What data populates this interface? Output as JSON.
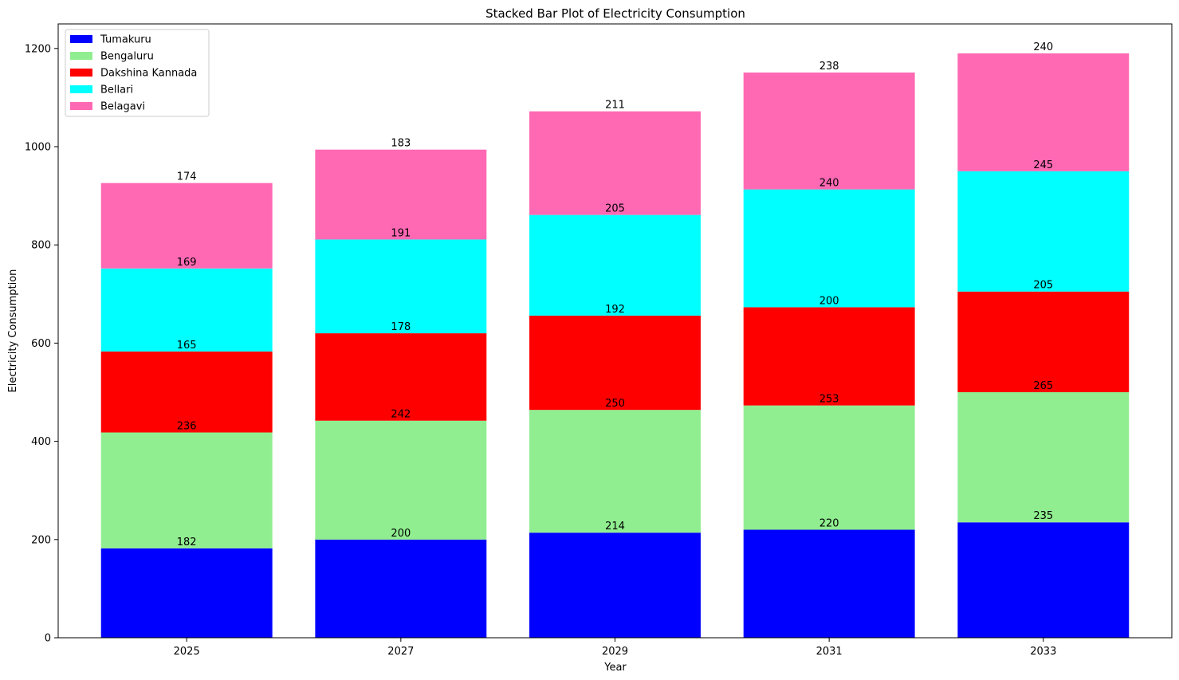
{
  "chart_data": {
    "type": "bar",
    "stacked": true,
    "title": "Stacked Bar Plot of Electricity Consumption",
    "xlabel": "Year",
    "ylabel": "Electricity Consumption",
    "categories": [
      "2025",
      "2027",
      "2029",
      "2031",
      "2033"
    ],
    "ylim": [
      0,
      1250
    ],
    "yticks": [
      0,
      200,
      400,
      600,
      800,
      1000,
      1200
    ],
    "grid": false,
    "legend_position": "top-left",
    "series": [
      {
        "name": "Tumakuru",
        "color": "#0000ff",
        "values": [
          182,
          200,
          214,
          220,
          235
        ]
      },
      {
        "name": "Bengaluru",
        "color": "#90ee90",
        "values": [
          236,
          242,
          250,
          253,
          265
        ]
      },
      {
        "name": "Dakshina Kannada",
        "color": "#ff0000",
        "values": [
          165,
          178,
          192,
          200,
          205
        ]
      },
      {
        "name": "Bellari",
        "color": "#00ffff",
        "values": [
          169,
          191,
          205,
          240,
          245
        ]
      },
      {
        "name": "Belagavi",
        "color": "#ff69b4",
        "values": [
          174,
          183,
          211,
          238,
          240
        ]
      }
    ]
  }
}
